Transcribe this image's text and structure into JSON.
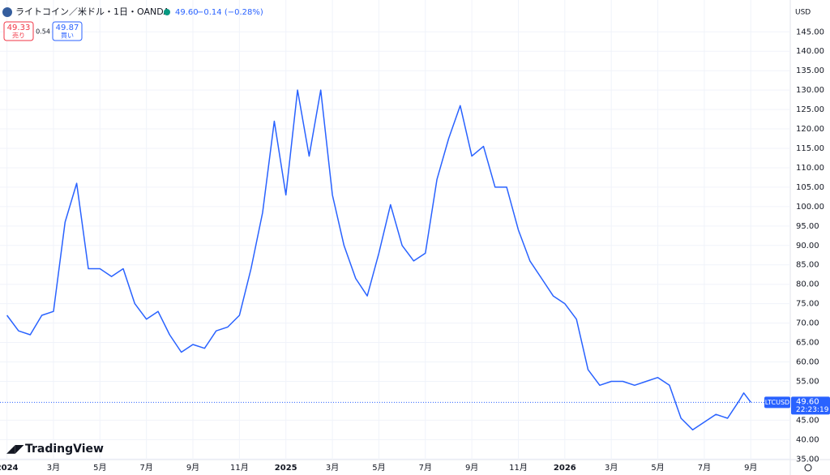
{
  "header": {
    "title": "ライトコイン／米ドル・1日・OANDA",
    "last": "49.60",
    "change": "−0.14 (−0.28%)",
    "sell": "49.33",
    "sell_label": "売り",
    "spread": "0.54",
    "buy": "49.87",
    "buy_label": "買い",
    "currency": "USD",
    "symbol": "LTCUSD",
    "countdown": "22:23:19",
    "logo": "TradingView"
  },
  "chart_data": {
    "type": "line",
    "color": "#2962ff",
    "grid": true,
    "x": [
      0,
      0.5,
      1,
      1.5,
      2,
      2.5,
      3,
      3.5,
      4,
      4.5,
      5,
      5.5,
      6,
      6.5,
      7,
      7.5,
      8,
      8.5,
      9,
      9.5,
      10,
      10.5,
      11,
      11.5,
      12,
      12.5,
      13,
      13.5,
      14,
      14.5,
      15,
      15.5,
      16,
      16.5,
      17,
      17.5,
      18,
      18.5,
      19,
      19.5,
      20,
      20.5,
      21,
      21.5,
      22,
      22.5,
      23,
      23.5,
      24,
      24.5,
      25,
      25.5,
      26,
      26.5,
      27,
      27.5,
      28,
      28.5,
      29,
      29.5,
      30,
      30.5,
      31,
      31.5,
      31.7,
      32
    ],
    "series": [
      {
        "name": "LTCUSD",
        "color": "#2962ff",
        "values": [
          72,
          68,
          67,
          72,
          73,
          96,
          106,
          84,
          84,
          82,
          84,
          75,
          71,
          73,
          67,
          62.5,
          64.5,
          63.5,
          68,
          69,
          72,
          84,
          98.5,
          122,
          103,
          130,
          113,
          130,
          103,
          90,
          81.5,
          77,
          88,
          100.5,
          90,
          86,
          88,
          107,
          117.5,
          126,
          113,
          115.5,
          105,
          105,
          94,
          86,
          81.5,
          77,
          75,
          71,
          58,
          54,
          55,
          55,
          54,
          55,
          56,
          54,
          45.5,
          42.5,
          44.5,
          46.5,
          45.5,
          50,
          52,
          49.6
        ]
      }
    ],
    "last_price": {
      "value": 49.6,
      "label": "49.60"
    },
    "xlim": [
      -0.3,
      33.7
    ],
    "xticks": [
      {
        "value": 0,
        "label": "2024"
      },
      {
        "value": 2,
        "label": "3月"
      },
      {
        "value": 4,
        "label": "5月"
      },
      {
        "value": 6,
        "label": "7月"
      },
      {
        "value": 8,
        "label": "9月"
      },
      {
        "value": 10,
        "label": "11月"
      },
      {
        "value": 12,
        "label": "2025"
      },
      {
        "value": 14,
        "label": "3月"
      },
      {
        "value": 16,
        "label": "5月"
      },
      {
        "value": 18,
        "label": "7月"
      },
      {
        "value": 20,
        "label": "9月"
      },
      {
        "value": 22,
        "label": "11月"
      },
      {
        "value": 24,
        "label": "2026"
      },
      {
        "value": 26,
        "label": "3月"
      },
      {
        "value": 28,
        "label": "5月"
      },
      {
        "value": 30,
        "label": "7月"
      },
      {
        "value": 32,
        "label": "9月"
      }
    ],
    "ylim": [
      34.85,
      153.2
    ],
    "yticks": [
      {
        "value": 35,
        "label": "35.00"
      },
      {
        "value": 40,
        "label": "40.00"
      },
      {
        "value": 45,
        "label": "45.00"
      },
      {
        "value": 55,
        "label": "55.00"
      },
      {
        "value": 60,
        "label": "60.00"
      },
      {
        "value": 65,
        "label": "65.00"
      },
      {
        "value": 70,
        "label": "70.00"
      },
      {
        "value": 75,
        "label": "75.00"
      },
      {
        "value": 80,
        "label": "80.00"
      },
      {
        "value": 85,
        "label": "85.00"
      },
      {
        "value": 90,
        "label": "90.00"
      },
      {
        "value": 95,
        "label": "95.00"
      },
      {
        "value": 100,
        "label": "100.00"
      },
      {
        "value": 105,
        "label": "105.00"
      },
      {
        "value": 110,
        "label": "110.00"
      },
      {
        "value": 115,
        "label": "115.00"
      },
      {
        "value": 120,
        "label": "120.00"
      },
      {
        "value": 125,
        "label": "125.00"
      },
      {
        "value": 130,
        "label": "130.00"
      },
      {
        "value": 135,
        "label": "135.00"
      },
      {
        "value": 140,
        "label": "140.00"
      },
      {
        "value": 145,
        "label": "145.00"
      }
    ]
  }
}
